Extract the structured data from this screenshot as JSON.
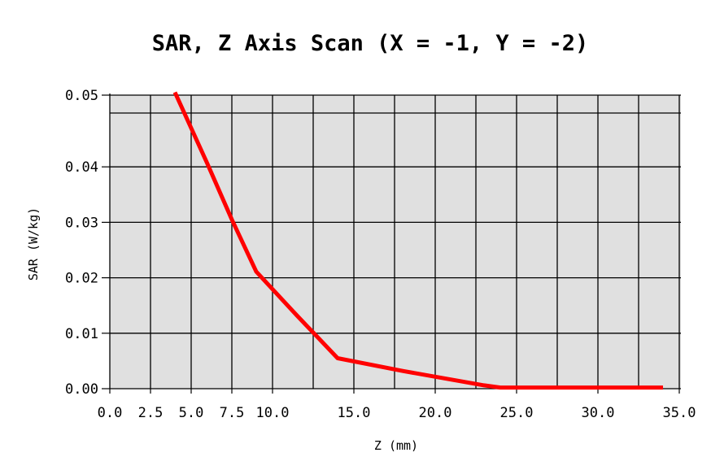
{
  "chart_data": {
    "type": "line",
    "title": "SAR, Z Axis Scan (X = -1, Y = -2)",
    "xlabel": "Z (mm)",
    "ylabel": "SAR (W/kg)",
    "xlim": [
      0,
      35
    ],
    "ylim": [
      0,
      0.05
    ],
    "xticks": [
      0,
      2.5,
      5,
      7.5,
      10,
      15,
      20,
      25,
      30,
      35
    ],
    "xtick_labels": [
      "0.0",
      "2.5",
      "5.0",
      "7.5",
      "10.0",
      "15.0",
      "20.0",
      "25.0",
      "30.0",
      "35.0"
    ],
    "yticks": [
      0,
      0.01,
      0.02,
      0.03,
      0.04,
      0.05
    ],
    "ytick_labels": [
      "0.00",
      "0.01",
      "0.02",
      "0.03",
      "0.04",
      "0.05"
    ],
    "grid": true,
    "background_color": "#e0e0e0",
    "series": [
      {
        "color": "#ff0000",
        "x": [
          4.0,
          6.0,
          7.5,
          9.0,
          11.5,
          14.0,
          18.0,
          23.0,
          24.0,
          34.0
        ],
        "y": [
          0.0504,
          0.0404,
          0.0305,
          0.0211,
          0.0132,
          0.0055,
          0.0032,
          0.0006,
          0.0002,
          0.0002
        ]
      }
    ]
  }
}
